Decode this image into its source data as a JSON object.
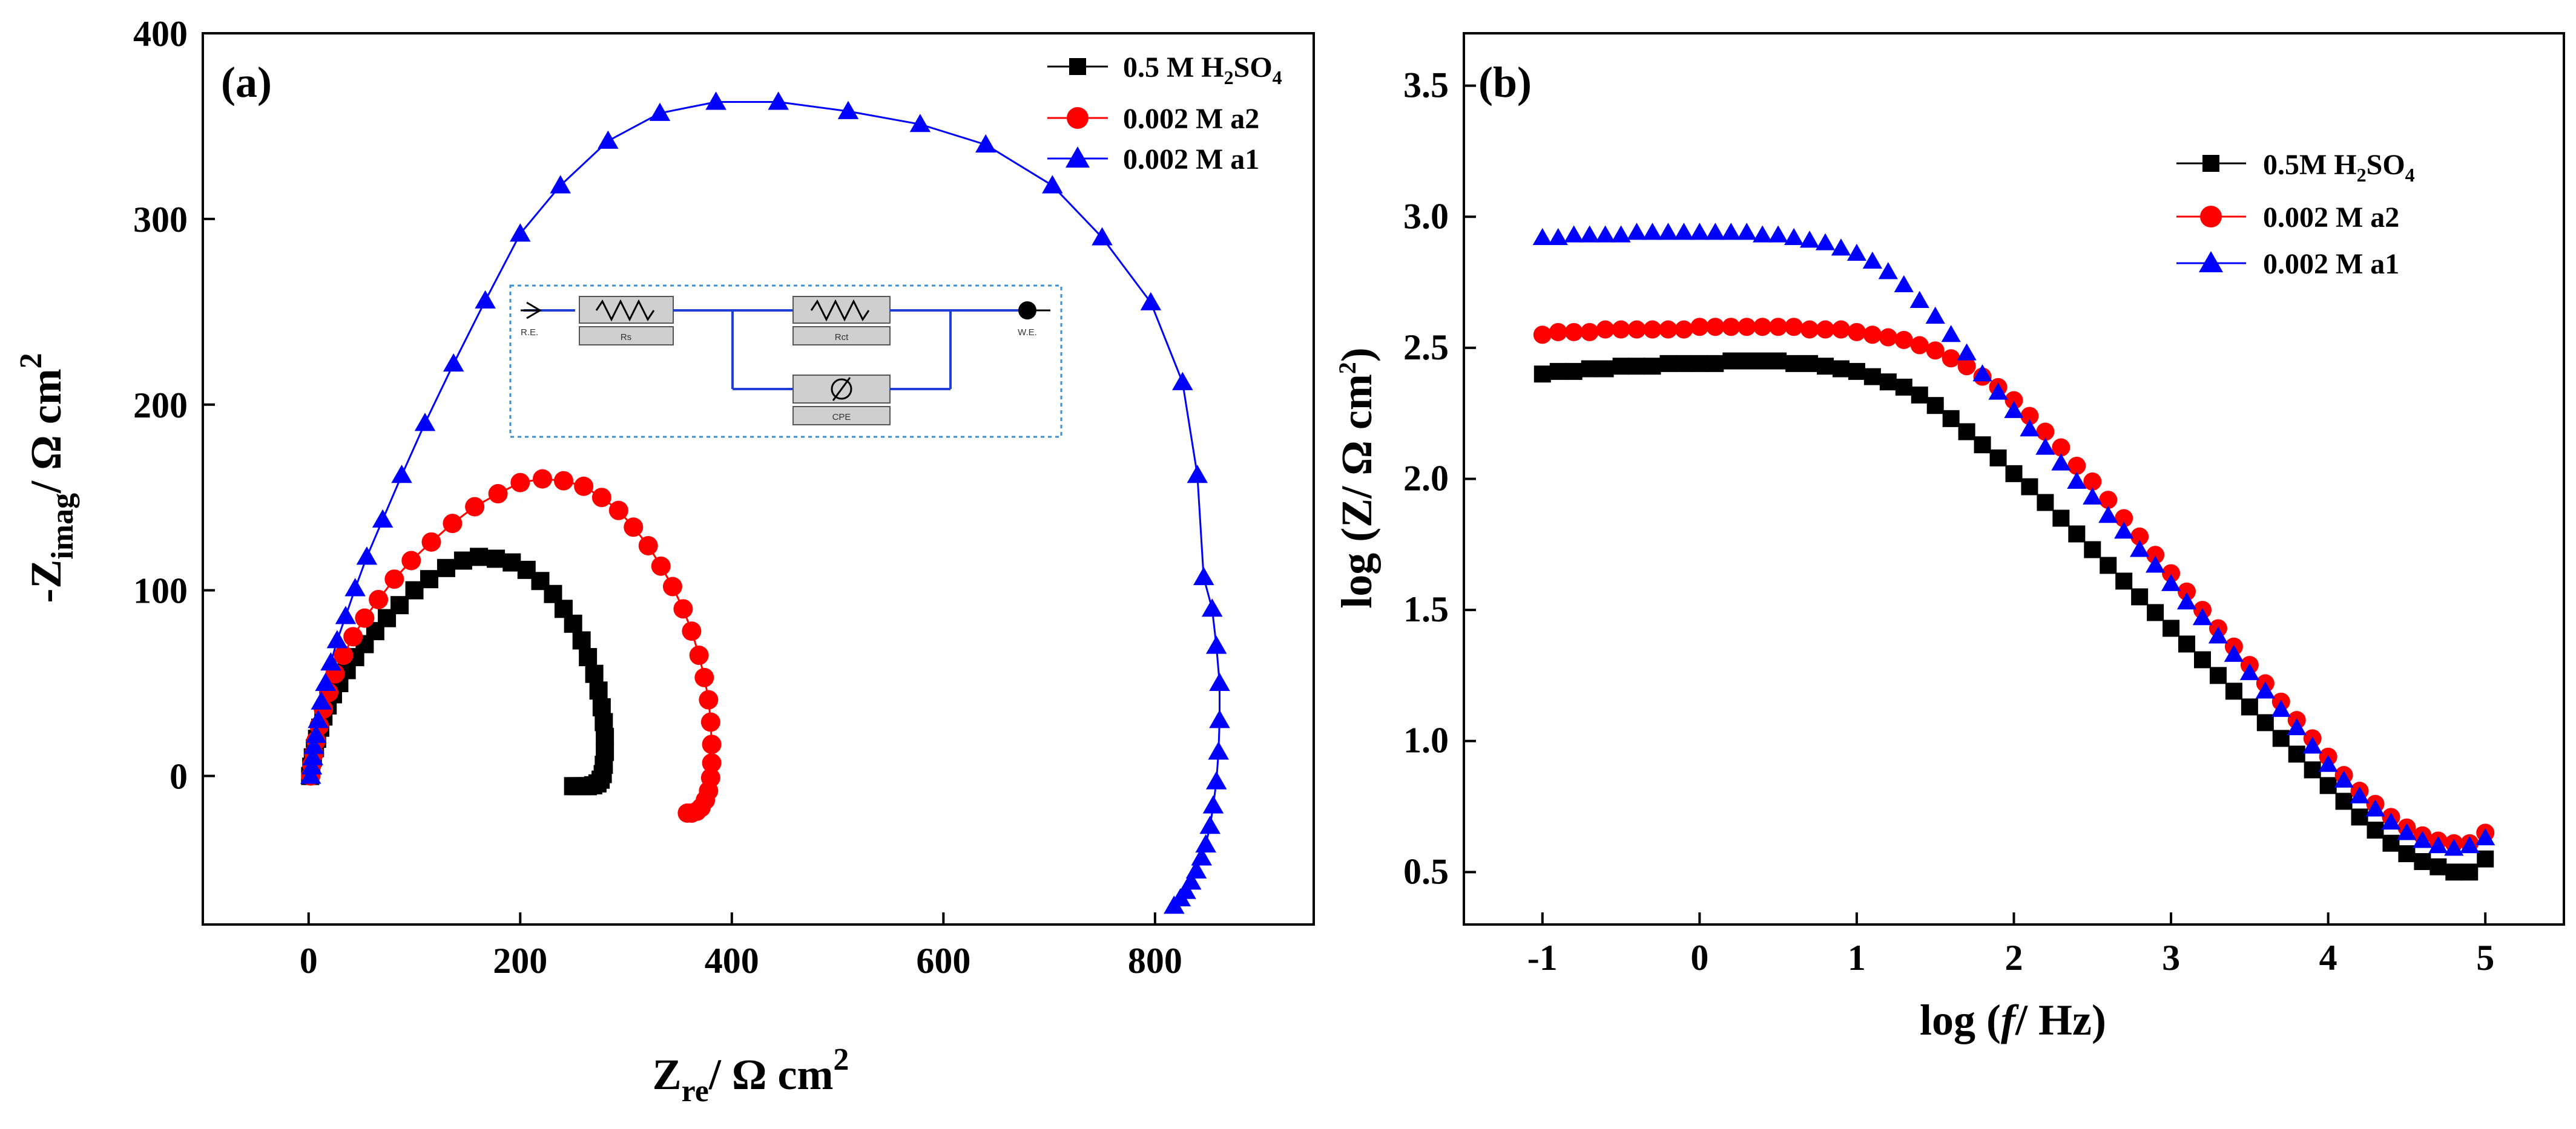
{
  "chart_data": [
    {
      "type": "scatter",
      "panel_label": "(a)",
      "title": "",
      "xlabel": {
        "main": "Z",
        "sub": "re",
        "rest": "/ Ω cm",
        "sup": "2"
      },
      "ylabel": {
        "main": "-Z",
        "sub": "imag",
        "rest": "/ Ω cm",
        "sup": "2"
      },
      "xlim": [
        -100,
        950
      ],
      "ylim": [
        -80,
        400
      ],
      "xticks": [
        0,
        200,
        400,
        600,
        800
      ],
      "yticks": [
        0,
        100,
        200,
        300,
        400
      ],
      "xtick_labels": [
        "0",
        "200",
        "400",
        "600",
        "800"
      ],
      "ytick_labels": [
        "0",
        "100",
        "200",
        "300",
        "400"
      ],
      "legend_position": "top-right",
      "series": [
        {
          "name": "0.5 M H2SO4",
          "label_parts": {
            "pre": "0.5 M H",
            "sub1": "2",
            "mid": "SO",
            "sub2": "4"
          },
          "color": "#000000",
          "marker": "square",
          "x": [
            1.5,
            2.5,
            4,
            6,
            8,
            11,
            14,
            18,
            23,
            29,
            36,
            44,
            53,
            63,
            74,
            86,
            100,
            114,
            130,
            146,
            161,
            177,
            192,
            206,
            219,
            231,
            241,
            250,
            258,
            264,
            270,
            274,
            277,
            279,
            280,
            280,
            279,
            278,
            276,
            273,
            269,
            264,
            259,
            254,
            250
          ],
          "y": [
            0,
            5,
            10,
            15,
            20,
            26,
            32,
            38,
            44,
            50,
            57,
            64,
            71,
            78,
            85,
            92,
            100,
            106,
            112,
            116,
            118,
            117,
            115,
            111,
            105,
            98,
            90,
            82,
            73,
            64,
            55,
            46,
            37,
            29,
            21,
            13,
            6,
            1,
            -2,
            -4,
            -5,
            -5.5,
            -5.5,
            -5.5,
            -5.5
          ]
        },
        {
          "name": "0.002 M a2",
          "label_parts": {
            "pre": "0.002 M a2",
            "sub1": "",
            "mid": "",
            "sub2": ""
          },
          "color": "#ff0000",
          "marker": "circle",
          "x": [
            2,
            3,
            5,
            7,
            10,
            14,
            19,
            25,
            33,
            42,
            53,
            66,
            81,
            97,
            116,
            136,
            157,
            179,
            200,
            221,
            241,
            260,
            277,
            293,
            307,
            321,
            333,
            344,
            354,
            362,
            369,
            374,
            378,
            380,
            381,
            381,
            380,
            378,
            375,
            371,
            367,
            362,
            358
          ],
          "y": [
            0,
            6,
            12,
            19,
            27,
            36,
            45,
            55,
            65,
            75,
            85,
            95,
            106,
            116,
            126,
            136,
            145,
            152,
            158,
            160,
            159,
            156,
            150,
            143,
            134,
            124,
            113,
            102,
            90,
            78,
            65,
            53,
            41,
            29,
            17,
            7,
            -1,
            -8,
            -13,
            -17,
            -19,
            -20,
            -20
          ]
        },
        {
          "name": "0.002 M a1",
          "label_parts": {
            "pre": "0.002 M a1",
            "sub1": "",
            "mid": "",
            "sub2": ""
          },
          "color": "#0000ff",
          "marker": "triangle",
          "x": [
            2,
            3,
            4,
            5,
            7,
            9,
            12,
            16,
            21,
            27,
            35,
            44,
            55,
            70,
            88,
            110,
            137,
            167,
            200,
            238,
            283,
            332,
            385,
            444,
            510,
            578,
            640,
            703,
            750,
            796,
            826,
            840,
            846,
            854,
            858,
            861,
            861,
            860,
            858,
            855,
            852,
            848,
            844,
            839,
            834,
            829,
            824,
            818
          ],
          "y": [
            0,
            5,
            10,
            16,
            22,
            30,
            40,
            50,
            61,
            73,
            86,
            101,
            118,
            138,
            162,
            190,
            222,
            256,
            292,
            318,
            342,
            357,
            363,
            363,
            358,
            351,
            340,
            318,
            290,
            255,
            212,
            162,
            107,
            90,
            70,
            50,
            30,
            13,
            -3,
            -16,
            -27,
            -37,
            -44,
            -51,
            -57,
            -62,
            -66,
            -70
          ]
        }
      ],
      "inset": {
        "type": "circuit",
        "labels": {
          "re": "R.E.",
          "rs": "Rs",
          "rct": "Rct",
          "cpe": "CPE",
          "we": "W.E."
        }
      }
    },
    {
      "type": "scatter",
      "panel_label": "(b)",
      "title": "",
      "xlabel": {
        "pre": "log (",
        "italic": "f",
        "post": "/ Hz)"
      },
      "ylabel": {
        "pre": "log (Z/ Ω cm",
        "sup": "2",
        "post": ")"
      },
      "xlim": [
        -1.5,
        5.5
      ],
      "ylim": [
        0.3,
        3.7
      ],
      "xticks": [
        -1,
        0,
        1,
        2,
        3,
        4,
        5
      ],
      "yticks": [
        0.5,
        1.0,
        1.5,
        2.0,
        2.5,
        3.0,
        3.5
      ],
      "xtick_labels": [
        "-1",
        "0",
        "1",
        "2",
        "3",
        "4",
        "5"
      ],
      "ytick_labels": [
        "0.5",
        "1.0",
        "1.5",
        "2.0",
        "2.5",
        "3.0",
        "3.5"
      ],
      "legend_position": "top-right",
      "series": [
        {
          "name": "0.5M H2SO4",
          "label_parts": {
            "pre": "0.5M H",
            "sub1": "2",
            "mid": "SO",
            "sub2": "4"
          },
          "color": "#000000",
          "marker": "square",
          "x": [
            -1.0,
            -0.9,
            -0.8,
            -0.7,
            -0.6,
            -0.5,
            -0.4,
            -0.3,
            -0.2,
            -0.1,
            0.0,
            0.1,
            0.2,
            0.3,
            0.4,
            0.5,
            0.6,
            0.7,
            0.8,
            0.9,
            1.0,
            1.1,
            1.2,
            1.3,
            1.4,
            1.5,
            1.6,
            1.7,
            1.8,
            1.9,
            2.0,
            2.1,
            2.2,
            2.3,
            2.4,
            2.5,
            2.6,
            2.7,
            2.8,
            2.9,
            3.0,
            3.1,
            3.2,
            3.3,
            3.4,
            3.5,
            3.6,
            3.7,
            3.8,
            3.9,
            4.0,
            4.1,
            4.2,
            4.3,
            4.4,
            4.5,
            4.6,
            4.7,
            4.8,
            4.9,
            5.0
          ],
          "y": [
            2.4,
            2.41,
            2.41,
            2.42,
            2.42,
            2.43,
            2.43,
            2.43,
            2.44,
            2.44,
            2.44,
            2.44,
            2.45,
            2.45,
            2.45,
            2.45,
            2.44,
            2.44,
            2.43,
            2.42,
            2.41,
            2.39,
            2.37,
            2.35,
            2.32,
            2.28,
            2.23,
            2.18,
            2.13,
            2.08,
            2.02,
            1.97,
            1.91,
            1.85,
            1.79,
            1.73,
            1.67,
            1.61,
            1.55,
            1.49,
            1.43,
            1.37,
            1.31,
            1.25,
            1.19,
            1.13,
            1.07,
            1.01,
            0.95,
            0.89,
            0.83,
            0.77,
            0.71,
            0.66,
            0.61,
            0.57,
            0.54,
            0.52,
            0.5,
            0.5,
            0.55
          ]
        },
        {
          "name": "0.002 M a2",
          "label_parts": {
            "pre": "0.002 M a2",
            "sub1": "",
            "mid": "",
            "sub2": ""
          },
          "color": "#ff0000",
          "marker": "circle",
          "x": [
            -1.0,
            -0.9,
            -0.8,
            -0.7,
            -0.6,
            -0.5,
            -0.4,
            -0.3,
            -0.2,
            -0.1,
            0.0,
            0.1,
            0.2,
            0.3,
            0.4,
            0.5,
            0.6,
            0.7,
            0.8,
            0.9,
            1.0,
            1.1,
            1.2,
            1.3,
            1.4,
            1.5,
            1.6,
            1.7,
            1.8,
            1.9,
            2.0,
            2.1,
            2.2,
            2.3,
            2.4,
            2.5,
            2.6,
            2.7,
            2.8,
            2.9,
            3.0,
            3.1,
            3.2,
            3.3,
            3.4,
            3.5,
            3.6,
            3.7,
            3.8,
            3.9,
            4.0,
            4.1,
            4.2,
            4.3,
            4.4,
            4.5,
            4.6,
            4.7,
            4.8,
            4.9,
            5.0
          ],
          "y": [
            2.55,
            2.56,
            2.56,
            2.56,
            2.57,
            2.57,
            2.57,
            2.57,
            2.57,
            2.57,
            2.58,
            2.58,
            2.58,
            2.58,
            2.58,
            2.58,
            2.58,
            2.57,
            2.57,
            2.57,
            2.56,
            2.55,
            2.54,
            2.53,
            2.51,
            2.49,
            2.46,
            2.43,
            2.39,
            2.35,
            2.3,
            2.24,
            2.18,
            2.12,
            2.05,
            1.99,
            1.92,
            1.85,
            1.78,
            1.71,
            1.64,
            1.57,
            1.5,
            1.43,
            1.36,
            1.29,
            1.22,
            1.15,
            1.08,
            1.01,
            0.94,
            0.87,
            0.81,
            0.76,
            0.71,
            0.67,
            0.64,
            0.62,
            0.61,
            0.61,
            0.65
          ]
        },
        {
          "name": "0.002 M a1",
          "label_parts": {
            "pre": "0.002 M a1",
            "sub1": "",
            "mid": "",
            "sub2": ""
          },
          "color": "#0000ff",
          "marker": "triangle",
          "x": [
            -1.0,
            -0.9,
            -0.8,
            -0.7,
            -0.6,
            -0.5,
            -0.4,
            -0.3,
            -0.2,
            -0.1,
            0.0,
            0.1,
            0.2,
            0.3,
            0.4,
            0.5,
            0.6,
            0.7,
            0.8,
            0.9,
            1.0,
            1.1,
            1.2,
            1.3,
            1.4,
            1.5,
            1.6,
            1.7,
            1.8,
            1.9,
            2.0,
            2.1,
            2.2,
            2.3,
            2.4,
            2.5,
            2.6,
            2.7,
            2.8,
            2.9,
            3.0,
            3.1,
            3.2,
            3.3,
            3.4,
            3.5,
            3.6,
            3.7,
            3.8,
            3.9,
            4.0,
            4.1,
            4.2,
            4.3,
            4.4,
            4.5,
            4.6,
            4.7,
            4.8,
            4.9,
            5.0
          ],
          "y": [
            2.92,
            2.92,
            2.93,
            2.93,
            2.93,
            2.93,
            2.94,
            2.94,
            2.94,
            2.94,
            2.94,
            2.94,
            2.94,
            2.94,
            2.93,
            2.93,
            2.92,
            2.91,
            2.9,
            2.88,
            2.86,
            2.83,
            2.79,
            2.74,
            2.68,
            2.62,
            2.55,
            2.48,
            2.4,
            2.33,
            2.26,
            2.19,
            2.12,
            2.06,
            1.99,
            1.93,
            1.86,
            1.8,
            1.73,
            1.67,
            1.6,
            1.53,
            1.47,
            1.4,
            1.33,
            1.26,
            1.19,
            1.12,
            1.05,
            0.98,
            0.91,
            0.85,
            0.79,
            0.74,
            0.69,
            0.65,
            0.62,
            0.6,
            0.59,
            0.6,
            0.63
          ]
        }
      ]
    }
  ]
}
